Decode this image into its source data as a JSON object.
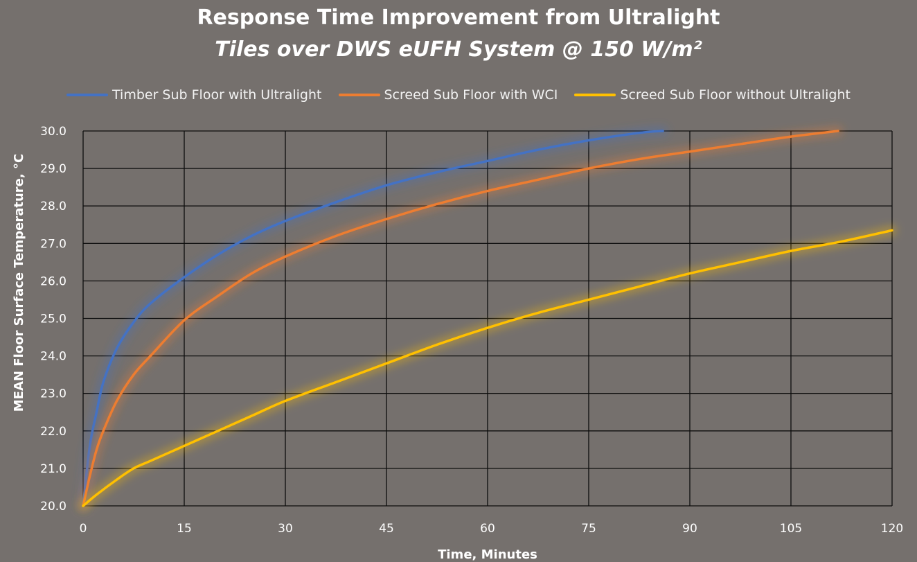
{
  "chart_data": {
    "type": "line",
    "title": "Response Time Improvement from Ultralight",
    "subtitle": "Tiles over DWS eUFH System @ 150 W/m²",
    "xlabel": "Time, Minutes",
    "ylabel": "MEAN Floor Surface Temperature, °C",
    "xlim": [
      0,
      120
    ],
    "ylim": [
      20,
      30
    ],
    "x_ticks": [
      0,
      15,
      30,
      45,
      60,
      75,
      90,
      105,
      120
    ],
    "y_ticks": [
      "20.0",
      "21.0",
      "22.0",
      "23.0",
      "24.0",
      "25.0",
      "26.0",
      "27.0",
      "28.0",
      "29.0",
      "30.0"
    ],
    "grid": true,
    "legend_position": "top",
    "series": [
      {
        "name": "Timber Sub Floor with Ultralight",
        "color": "#4472c4",
        "x": [
          0,
          1,
          2,
          3,
          5,
          7.5,
          10,
          15,
          20,
          25,
          30,
          37.5,
          45,
          52.5,
          60,
          67.5,
          75,
          82.5,
          86
        ],
        "y": [
          20.0,
          21.6,
          22.5,
          23.3,
          24.2,
          24.9,
          25.4,
          26.1,
          26.7,
          27.2,
          27.6,
          28.1,
          28.55,
          28.9,
          29.2,
          29.5,
          29.75,
          29.95,
          30.0
        ]
      },
      {
        "name": "Screed Sub Floor with WCI",
        "color": "#ed7d31",
        "x": [
          0,
          1,
          2,
          3,
          5,
          7.5,
          10,
          15,
          20,
          25,
          30,
          37.5,
          45,
          52.5,
          60,
          67.5,
          75,
          82.5,
          90,
          97.5,
          105,
          112
        ],
        "y": [
          20.0,
          20.8,
          21.5,
          22.0,
          22.8,
          23.5,
          24.0,
          24.95,
          25.6,
          26.2,
          26.65,
          27.2,
          27.65,
          28.05,
          28.4,
          28.7,
          29.0,
          29.25,
          29.45,
          29.65,
          29.85,
          30.0
        ]
      },
      {
        "name": "Screed Sub Floor without Ultralight",
        "color": "#ffc000",
        "x": [
          0,
          2,
          5,
          7.5,
          10,
          15,
          20,
          25,
          30,
          37.5,
          45,
          52.5,
          60,
          67.5,
          75,
          82.5,
          90,
          97.5,
          105,
          112.5,
          120
        ],
        "y": [
          20.0,
          20.3,
          20.7,
          21.0,
          21.2,
          21.6,
          22.0,
          22.4,
          22.8,
          23.3,
          23.8,
          24.3,
          24.75,
          25.15,
          25.5,
          25.85,
          26.2,
          26.5,
          26.8,
          27.05,
          27.35
        ]
      }
    ]
  }
}
